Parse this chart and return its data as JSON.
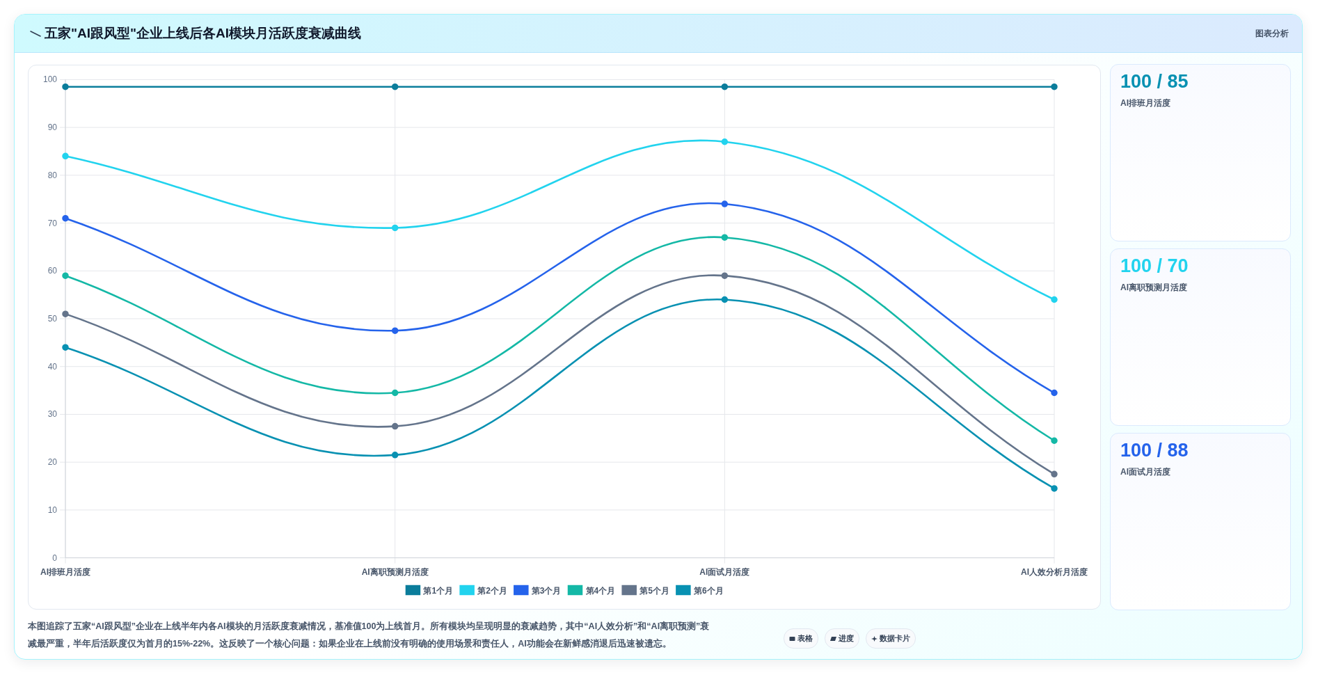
{
  "chart_data": [
    {
      "type": "line",
      "title": "五家\"AI跟风型\"企业上线后各AI模块月活跃度衰减曲线",
      "categories": [
        "AI排班月活度",
        "AI离职预测月活度",
        "AI面试月活度",
        "AI人效分析月活度"
      ],
      "series": [
        {
          "name": "第1个月",
          "color": "#0b7d9b",
          "values": [
            98.5,
            98.5,
            98.5,
            98.5
          ]
        },
        {
          "name": "第2个月",
          "color": "#22d3ee",
          "values": [
            84,
            69,
            87,
            54
          ]
        },
        {
          "name": "第3个月",
          "color": "#2563eb",
          "values": [
            71,
            47.5,
            74,
            34.5
          ]
        },
        {
          "name": "第4个月",
          "color": "#14b8a6",
          "values": [
            59,
            34.5,
            67,
            24.5
          ]
        },
        {
          "name": "第5个月",
          "color": "#64748b",
          "values": [
            51,
            27.5,
            59,
            17.5
          ]
        },
        {
          "name": "第6个月",
          "color": "#0891b2",
          "values": [
            44,
            21.5,
            54,
            14.5
          ]
        }
      ],
      "ylim": [
        0,
        100
      ],
      "yticks": [
        0,
        10,
        20,
        30,
        40,
        50,
        60,
        70,
        80,
        90,
        100
      ],
      "grid": true,
      "legend": "bottom",
      "marker": "circle",
      "annotations": [
        "图表分析",
        "本图追踪了五家“AI跟风型”企业在上线半年内各AI模块的月活跃度衰减情况，基准值100为上线首月。所有模块均呈现明显的衰减趋势，其中“AI人效分析”和“AI离职预测”衰减最严重，半年后活跃度仅为首月的15%-22%。这反映了一个核心问题：如果企业在上线前没有明确的使用场景和责任人，AI功能会在新鲜感消退后迅速被遗忘。",
        "表格",
        "进度",
        "数据卡片"
      ]
    },
    {
      "type": "other",
      "title": "100 / 85",
      "subtitle": "AI排班月活度",
      "color": "#0891b2"
    },
    {
      "type": "other",
      "title": "100 / 70",
      "subtitle": "AI离职预测月活度",
      "color": "#22d3ee"
    },
    {
      "type": "other",
      "title": "100 / 88",
      "subtitle": "AI面试月活度",
      "color": "#2563eb"
    }
  ]
}
